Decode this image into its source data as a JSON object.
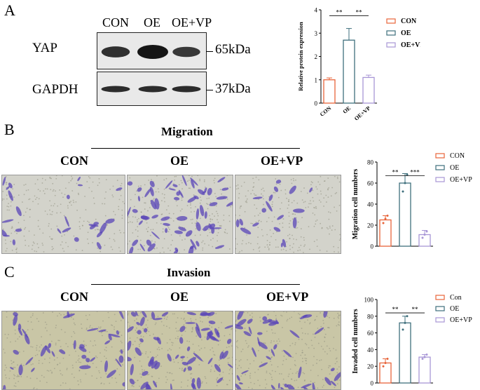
{
  "panels": {
    "A": {
      "letter": "A",
      "groups": [
        "CON",
        "OE",
        "OE+VP"
      ],
      "rows": [
        {
          "protein": "YAP",
          "kda": "65kDa",
          "intensity": [
            0.65,
            1.0,
            0.55
          ]
        },
        {
          "protein": "GAPDH",
          "kda": "37kDa",
          "intensity": [
            0.7,
            0.7,
            0.7
          ]
        }
      ]
    },
    "B": {
      "letter": "B",
      "title": "Migration",
      "columns": [
        "CON",
        "OE",
        "OE+VP"
      ],
      "density": [
        0.35,
        0.9,
        0.25
      ]
    },
    "C": {
      "letter": "C",
      "title": "Invasion",
      "columns": [
        "CON",
        "OE",
        "OE+VP"
      ],
      "density": [
        0.55,
        0.95,
        0.6
      ]
    }
  },
  "chart_data": [
    {
      "type": "bar",
      "categories": [
        "CON",
        "OE",
        "OE+VP"
      ],
      "values": [
        1.0,
        2.7,
        1.1
      ],
      "errors": [
        0.08,
        0.5,
        0.1
      ],
      "ylabel": "Relative protein expression",
      "ylim": [
        0,
        4
      ],
      "yticks": [
        0,
        1,
        2,
        3,
        4
      ],
      "legend": [
        "CON",
        "OE",
        "OE+VP"
      ],
      "legend_position": "right",
      "colors": [
        "#e8643a",
        "#3e6f7c",
        "#a896d6"
      ],
      "significance": [
        "**",
        "**"
      ]
    },
    {
      "type": "bar",
      "categories": [
        "CON",
        "OE",
        "OE+VP"
      ],
      "values": [
        25,
        60,
        11
      ],
      "errors": [
        4,
        9,
        4
      ],
      "points": [
        [
          22,
          26,
          29
        ],
        [
          52,
          60,
          68
        ],
        [
          8,
          11,
          14
        ]
      ],
      "ylabel": "Migration cell numbers",
      "ylim": [
        0,
        80
      ],
      "yticks": [
        0,
        20,
        40,
        60,
        80
      ],
      "legend": [
        "CON",
        "OE",
        "OE+VP"
      ],
      "legend_position": "right",
      "colors": [
        "#e8643a",
        "#3e6f7c",
        "#a896d6"
      ],
      "significance": [
        "**",
        "***"
      ]
    },
    {
      "type": "bar",
      "categories": [
        "Con",
        "OE",
        "OE+VP"
      ],
      "values": [
        24,
        72,
        31
      ],
      "errors": [
        5,
        8,
        3
      ],
      "points": [
        [
          20,
          24,
          29
        ],
        [
          64,
          72,
          80
        ],
        [
          29,
          31,
          34
        ]
      ],
      "ylabel": "Invaded cell numbers",
      "ylim": [
        0,
        100
      ],
      "yticks": [
        0,
        20,
        40,
        60,
        80,
        100
      ],
      "legend": [
        "Con",
        "OE",
        "OE+VP"
      ],
      "legend_position": "right",
      "colors": [
        "#e8643a",
        "#3e6f7c",
        "#a896d6"
      ],
      "significance": [
        "**",
        "**"
      ]
    }
  ]
}
